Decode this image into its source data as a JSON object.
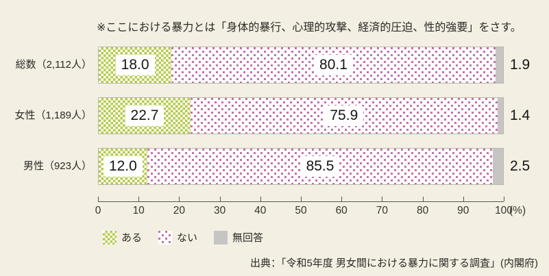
{
  "note": "※ここにおける暴力とは「身体的暴行、心理的攻撃、経済的圧迫、性的強要」をさす。",
  "source": "出典：「令和5年度 男女間における暴力に関する調査」(内閣府)",
  "axis": {
    "tick_labels": [
      "0",
      "10",
      "20",
      "30",
      "40",
      "50",
      "60",
      "70",
      "80",
      "90",
      "100"
    ],
    "unit": "(%)"
  },
  "legend": {
    "items": [
      {
        "label": "ある",
        "swatch": "green-checker"
      },
      {
        "label": "ない",
        "swatch": "pink-dots"
      },
      {
        "label": "無回答",
        "swatch": "gray-solid"
      }
    ]
  },
  "colors": {
    "background": "#f3f0e3",
    "green": "#b4ca48",
    "pink": "#c471ac",
    "gray": "#c6c5c3",
    "text": "#2a2925"
  },
  "chart_data": {
    "type": "bar",
    "orientation": "horizontal",
    "stacked": true,
    "title_note": "※ここにおける暴力とは「身体的暴行、心理的攻撃、経済的圧迫、性的強要」をさす。",
    "categories": [
      "総数（2,112人）",
      "女性（1,189人）",
      "男性（923人）"
    ],
    "series": [
      {
        "name": "ある",
        "values": [
          18.0,
          22.7,
          12.0
        ],
        "labels": [
          "18.0",
          "22.7",
          "12.0"
        ]
      },
      {
        "name": "ない",
        "values": [
          80.1,
          75.9,
          85.5
        ],
        "labels": [
          "80.1",
          "75.9",
          "85.5"
        ]
      },
      {
        "name": "無回答",
        "values": [
          1.9,
          1.4,
          2.5
        ],
        "labels": [
          "1.9",
          "1.4",
          "2.5"
        ]
      }
    ],
    "xlim": [
      0,
      100
    ],
    "x_unit": "%",
    "grid": false,
    "legend_position": "bottom",
    "source": "出典：「令和5年度 男女間における暴力に関する調査」(内閣府)"
  }
}
